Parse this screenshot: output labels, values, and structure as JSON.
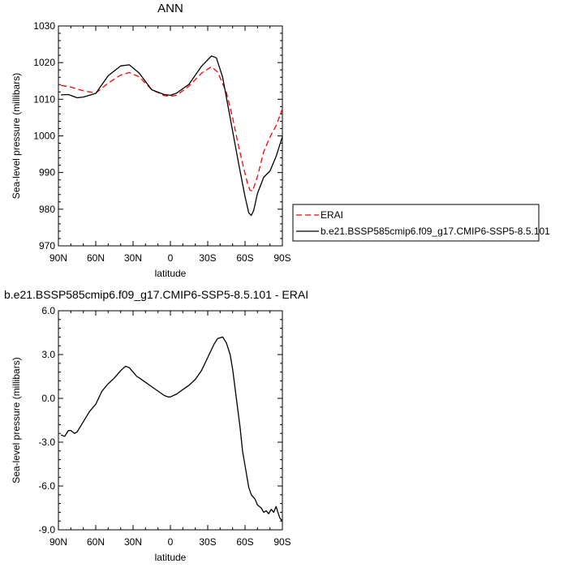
{
  "chart_data": [
    {
      "type": "line",
      "title": "ANN",
      "xlabel": "latitude",
      "ylabel": "Sea-level pressure (millibars)",
      "xlim": [
        90,
        -90
      ],
      "ylim": [
        970,
        1030
      ],
      "x_ticks": [
        90,
        60,
        30,
        0,
        -30,
        -60,
        -90
      ],
      "x_tick_labels": [
        "90N",
        "60N",
        "30N",
        "0",
        "30S",
        "60S",
        "90S"
      ],
      "y_ticks": [
        970,
        980,
        990,
        1000,
        1010,
        1020,
        1030
      ],
      "y_tick_labels": [
        "970",
        "980",
        "990",
        "1000",
        "1010",
        "1020",
        "1030"
      ],
      "legend_position": "right",
      "series": [
        {
          "name": "ERAI",
          "color": "#ff0000",
          "dash": "dashed",
          "x": [
            88,
            80,
            70,
            60,
            50,
            40,
            33,
            25,
            15,
            5,
            0,
            -5,
            -15,
            -25,
            -33,
            -38,
            -45,
            -50,
            -55,
            -60,
            -62,
            -64,
            -66,
            -70,
            -75,
            -80,
            -85,
            -90
          ],
          "y": [
            1013.8,
            1013.3,
            1012.3,
            1011.7,
            1014.4,
            1016.6,
            1017.3,
            1016.1,
            1012.6,
            1011.0,
            1010.8,
            1011.1,
            1013.6,
            1017.1,
            1018.9,
            1017.4,
            1011.9,
            1004.9,
            996.9,
            989.7,
            987.0,
            985.2,
            984.9,
            988.9,
            995.7,
            999.7,
            1002.8,
            1007.4
          ]
        },
        {
          "name": "b.e21.BSSP585cmip6.f09_g17.CMIP6-SSP5-8.5.101",
          "color": "#000000",
          "dash": "solid",
          "x": [
            88,
            82,
            75,
            70,
            60,
            50,
            40,
            33,
            25,
            15,
            5,
            0,
            -5,
            -15,
            -25,
            -33,
            -37,
            -42,
            -48,
            -55,
            -60,
            -63,
            -65,
            -67,
            -70,
            -75,
            -80,
            -85,
            -90
          ],
          "y": [
            1011.2,
            1011.3,
            1010.4,
            1010.6,
            1011.6,
            1016.4,
            1019.1,
            1019.4,
            1017.1,
            1012.6,
            1011.3,
            1011.1,
            1011.7,
            1014.1,
            1019.0,
            1021.8,
            1021.3,
            1016.0,
            1005.0,
            992.2,
            983.4,
            979.0,
            978.3,
            979.7,
            984.3,
            988.7,
            990.4,
            994.4,
            999.8
          ]
        }
      ]
    },
    {
      "type": "line",
      "title": "b.e21.BSSP585cmip6.f09_g17.CMIP6-SSP5-8.5.101 - ERAI",
      "xlabel": "latitude",
      "ylabel": "Sea-level pressure (millibars)",
      "xlim": [
        90,
        -90
      ],
      "ylim": [
        -9.0,
        6.0
      ],
      "x_ticks": [
        90,
        60,
        30,
        0,
        -30,
        -60,
        -90
      ],
      "x_tick_labels": [
        "90N",
        "60N",
        "30N",
        "0",
        "30S",
        "60S",
        "90S"
      ],
      "y_ticks": [
        -9.0,
        -6.0,
        -3.0,
        0.0,
        3.0,
        6.0
      ],
      "y_tick_labels": [
        "-9.0",
        "-6.0",
        "-3.0",
        "0.0",
        "3.0",
        "6.0"
      ],
      "series": [
        {
          "color": "#000000",
          "dash": "solid",
          "x": [
            88,
            85,
            82,
            80,
            77,
            75,
            70,
            65,
            60,
            55,
            50,
            45,
            40,
            36,
            33,
            30,
            27,
            25,
            20,
            15,
            10,
            5,
            2,
            0,
            -5,
            -10,
            -15,
            -20,
            -25,
            -30,
            -35,
            -38,
            -42,
            -45,
            -48,
            -50,
            -53,
            -56,
            -58,
            -61,
            -63,
            -65,
            -68,
            -70,
            -73,
            -75,
            -77,
            -79,
            -81,
            -83,
            -85,
            -86,
            -88,
            -90
          ],
          "y": [
            -2.5,
            -2.6,
            -2.2,
            -2.2,
            -2.4,
            -2.3,
            -1.6,
            -0.9,
            -0.4,
            0.5,
            1.0,
            1.4,
            1.9,
            2.2,
            2.1,
            1.8,
            1.5,
            1.4,
            1.1,
            0.8,
            0.5,
            0.2,
            0.1,
            0.1,
            0.3,
            0.6,
            0.9,
            1.3,
            1.9,
            2.8,
            3.7,
            4.1,
            4.2,
            3.8,
            3.0,
            2.0,
            0.0,
            -2.0,
            -3.6,
            -5.1,
            -6.1,
            -6.6,
            -6.9,
            -7.3,
            -7.5,
            -7.8,
            -7.7,
            -7.9,
            -7.6,
            -7.8,
            -7.4,
            -7.7,
            -8.2,
            -8.4
          ]
        }
      ]
    }
  ]
}
